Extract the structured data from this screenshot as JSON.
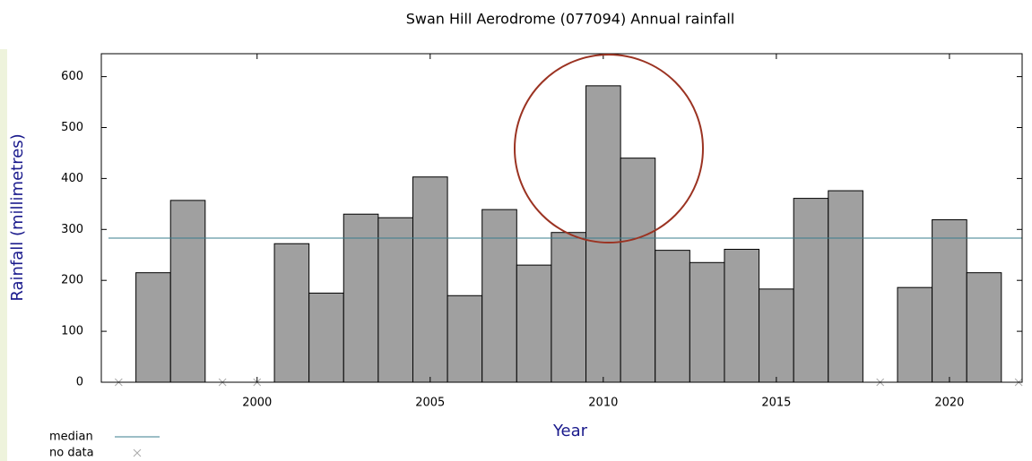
{
  "chart_data": {
    "type": "bar",
    "title": "Swan Hill Aerodrome (077094) Annual rainfall",
    "xlabel": "Year",
    "ylabel": "Rainfall (millimetres)",
    "x": [
      1996,
      1997,
      1998,
      1999,
      2000,
      2001,
      2002,
      2003,
      2004,
      2005,
      2006,
      2007,
      2008,
      2009,
      2010,
      2011,
      2012,
      2013,
      2014,
      2015,
      2016,
      2017,
      2018,
      2019,
      2020,
      2021,
      2022
    ],
    "values": [
      null,
      215,
      357,
      null,
      null,
      272,
      175,
      330,
      323,
      403,
      170,
      339,
      230,
      294,
      582,
      440,
      259,
      235,
      261,
      183,
      361,
      376,
      null,
      186,
      319,
      215,
      null
    ],
    "color": "#a0a0a0",
    "median": 283,
    "median_color": "#3a7d8c",
    "legend": {
      "median": "median",
      "no_data": "no data"
    },
    "xlim": [
      1995.5,
      2022.1
    ],
    "xticks": [
      2000,
      2005,
      2010,
      2015,
      2020
    ],
    "ylim": [
      0,
      645
    ],
    "yticks": [
      0,
      100,
      200,
      300,
      400,
      500,
      600
    ]
  }
}
